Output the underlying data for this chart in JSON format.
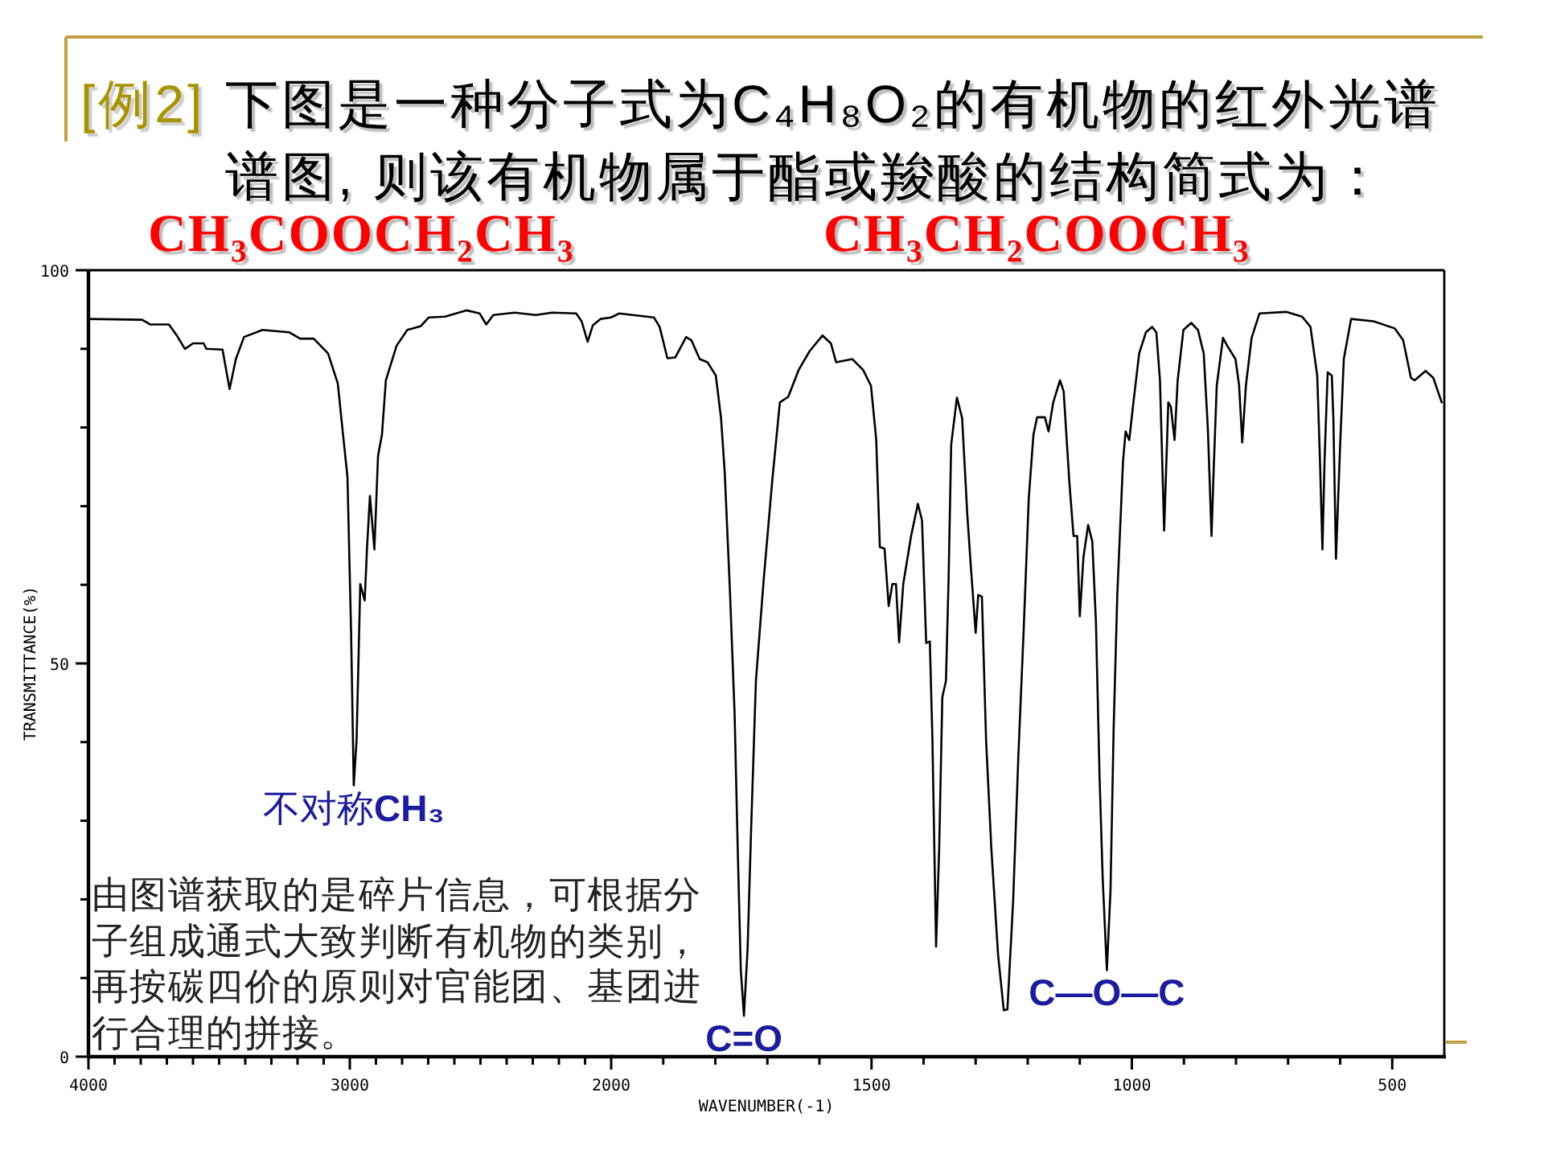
{
  "chart_data": [
    {
      "type": "line",
      "title": "[例2]",
      "subtitle": "下图是一种分子式为C₄H₈O₂的有机物的红外光谱谱图, 则该有机物属于酯或羧酸的结构简式为：",
      "ylabel": "TRANSMITTANCE(%)",
      "xlim": [
        4000,
        2000
      ],
      "ylim": [
        0,
        100
      ],
      "xticks": [
        4000,
        {
          "value": 3900,
          "label": null
        },
        {
          "value": 3800,
          "label": null
        },
        {
          "value": 3700,
          "label": null
        },
        {
          "value": 3600,
          "label": null
        },
        {
          "value": 3500,
          "label": null
        },
        {
          "value": 3400,
          "label": null
        },
        {
          "value": 3300,
          "label": null
        },
        {
          "value": 3200,
          "label": null
        },
        {
          "value": 3100,
          "label": null
        },
        3000,
        {
          "value": 2900,
          "label": null
        },
        {
          "value": 2800,
          "label": null
        },
        {
          "value": 2700,
          "label": null
        },
        {
          "value": 2600,
          "label": null
        },
        {
          "value": 2500,
          "label": null
        },
        {
          "value": 2400,
          "label": null
        },
        {
          "value": 2300,
          "label": null
        },
        {
          "value": 2200,
          "label": null
        },
        {
          "value": 2100,
          "label": null
        },
        2000
      ],
      "yticks": [
        0,
        {
          "value": 10,
          "label": null
        },
        {
          "value": 20,
          "label": null
        },
        {
          "value": 30,
          "label": null
        },
        {
          "value": 40,
          "label": null
        },
        50,
        {
          "value": 60,
          "label": null
        },
        {
          "value": 70,
          "label": null
        },
        {
          "value": 80,
          "label": null
        },
        {
          "value": 90,
          "label": null
        },
        100
      ],
      "series": [
        {
          "color": "#000000",
          "x": [
            4000,
            3795,
            3764,
            3692,
            3662,
            3631,
            3600,
            3559,
            3549,
            3487,
            3460,
            3436,
            3405,
            3334,
            3231,
            3190,
            3138,
            3083,
            3046,
            3026,
            3009,
            2995,
            2985,
            2974,
            2960,
            2943,
            2934,
            2923,
            2906,
            2892,
            2877,
            2862,
            2821,
            2780,
            2728,
            2698,
            2636,
            2554,
            2503,
            2478,
            2451,
            2369,
            2289,
            2226,
            2134,
            2113,
            2090,
            2070,
            2041,
            2000
          ],
          "values": [
            93.8,
            93.7,
            93.1,
            93.1,
            91.7,
            90.0,
            90.7,
            90.7,
            90.0,
            89.9,
            84.9,
            88.7,
            91.5,
            92.4,
            92.1,
            91.3,
            91.3,
            89.4,
            85.6,
            79.1,
            73.7,
            53.9,
            34.5,
            40.3,
            60.1,
            58.0,
            64.8,
            71.3,
            64.5,
            76.4,
            79.1,
            86.0,
            90.4,
            92.4,
            92.9,
            94.0,
            94.1,
            94.9,
            94.5,
            93.1,
            94.3,
            94.6,
            94.3,
            94.6,
            94.5,
            93.5,
            90.9,
            93.0,
            93.8,
            94.0
          ]
        }
      ],
      "annotations": [
        "CH₃COOCH₂CH₃",
        "CH₃CH₂COOCH₃",
        {
          "text": "不对称CH₃",
          "x": 2985,
          "y": 34.5
        },
        "由图谱获取的是碎片信息，可根据分子组成通式大致判断有机物的类别，再按碳四价的原则对官能团、基团进行合理的拼接。"
      ]
    },
    {
      "type": "line",
      "xlabel": "WAVENUMBER(-1)",
      "tick_labels": "x",
      "xlim": [
        2000,
        400
      ],
      "ylim": [
        0,
        100
      ],
      "xticks": [
        {
          "value": 1900,
          "label": null
        },
        {
          "value": 1800,
          "label": null
        },
        {
          "value": 1700,
          "label": null
        },
        {
          "value": 1600,
          "label": null
        },
        1500,
        {
          "value": 1400,
          "label": null
        },
        {
          "value": 1300,
          "label": null
        },
        {
          "value": 1200,
          "label": null
        },
        {
          "value": 1100,
          "label": null
        },
        1000,
        {
          "value": 900,
          "label": null
        },
        {
          "value": 800,
          "label": null
        },
        {
          "value": 700,
          "label": null
        },
        {
          "value": 600,
          "label": null
        },
        500
      ],
      "series": [
        {
          "color": "#000000",
          "x": [
            2000,
            1985,
            1918,
            1907,
            1892,
            1877,
            1856,
            1846,
            1830,
            1815,
            1799,
            1789,
            1782,
            1772,
            1763,
            1757,
            1751,
            1745,
            1738,
            1731,
            1722,
            1707,
            1691,
            1676,
            1660,
            1640,
            1619,
            1594,
            1578,
            1568,
            1537,
            1516,
            1501,
            1491,
            1484,
            1475,
            1467,
            1460,
            1453,
            1447,
            1439,
            1424,
            1411,
            1403,
            1395,
            1388,
            1383,
            1376,
            1370,
            1364,
            1357,
            1352,
            1347,
            1336,
            1326,
            1316,
            1309,
            1300,
            1295,
            1288,
            1280,
            1270,
            1257,
            1246,
            1239,
            1228,
            1218,
            1208,
            1198,
            1189,
            1182,
            1167,
            1160,
            1151,
            1138,
            1131,
            1120,
            1112,
            1105,
            1100,
            1093,
            1084,
            1076,
            1069,
            1062,
            1056,
            1048,
            1041,
            1035,
            1028,
            1017,
            1012,
            1005,
            997,
            986,
            973,
            961,
            953,
            946,
            938,
            930,
            925,
            918,
            912,
            901,
            886,
            873,
            862,
            854,
            847,
            843,
            837,
            825,
            817,
            801,
            794,
            788,
            781,
            770,
            755,
            704,
            673,
            657,
            644,
            639,
            634,
            630,
            624,
            616,
            613,
            608,
            600,
            593,
            579,
            536,
            495,
            479,
            464,
            457,
            436,
            421,
            405
          ],
          "values": [
            94.0,
            94.5,
            94.0,
            92.8,
            88.8,
            88.9,
            91.5,
            91.1,
            88.7,
            88.3,
            86.6,
            81.2,
            74.4,
            59.4,
            43.7,
            26.6,
            11.0,
            5.2,
            13.7,
            29.4,
            47.8,
            60.7,
            73.0,
            83.2,
            83.9,
            87.3,
            89.7,
            91.7,
            90.7,
            88.3,
            88.7,
            87.3,
            85.3,
            78.5,
            64.8,
            64.6,
            57.3,
            60.1,
            60.1,
            52.7,
            60.1,
            66.2,
            70.3,
            68.2,
            52.6,
            52.8,
            40.3,
            14.0,
            26.6,
            45.7,
            47.8,
            60.7,
            77.8,
            83.8,
            81.2,
            68.9,
            62.1,
            53.9,
            58.7,
            58.5,
            40.3,
            26.6,
            13.0,
            5.9,
            6.0,
            19.8,
            38.2,
            53.9,
            71.0,
            79.1,
            81.3,
            81.3,
            79.5,
            83.2,
            86.0,
            84.6,
            73.0,
            66.2,
            66.2,
            56.0,
            63.5,
            67.6,
            65.5,
            55.3,
            35.5,
            22.6,
            11.0,
            21.2,
            41.7,
            58.7,
            75.7,
            79.5,
            78.4,
            83.2,
            89.4,
            92.1,
            92.8,
            92.1,
            86.0,
            66.9,
            83.2,
            82.6,
            78.4,
            86.0,
            92.4,
            93.3,
            92.4,
            89.4,
            79.8,
            66.2,
            74.4,
            85.3,
            91.4,
            90.4,
            88.7,
            85.3,
            78.1,
            85.3,
            91.4,
            94.5,
            94.7,
            94.1,
            92.8,
            86.6,
            76.4,
            64.5,
            75.7,
            87.0,
            86.6,
            81.2,
            63.3,
            77.8,
            88.7,
            93.8,
            93.5,
            92.6,
            91.1,
            86.3,
            86.0,
            87.2,
            86.3,
            83.2
          ]
        }
      ],
      "annotations": [
        {
          "text": "C=O",
          "x": 1745,
          "y": 5.2
        },
        {
          "text": "C—O—C",
          "x": 1048,
          "y": 11.0
        }
      ]
    }
  ]
}
